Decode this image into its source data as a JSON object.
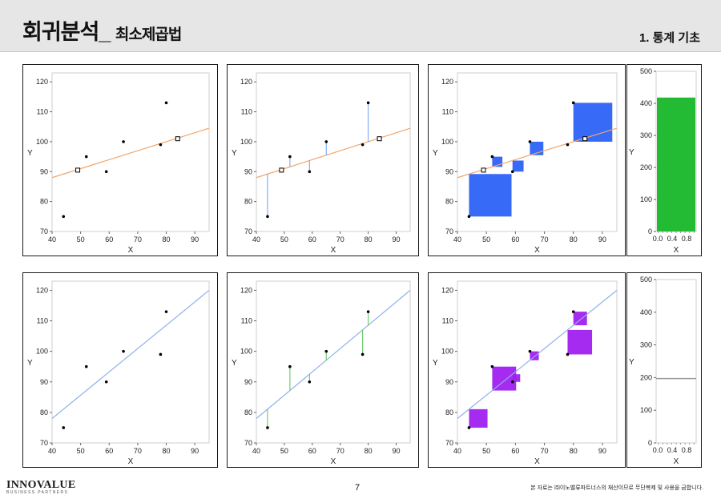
{
  "header": {
    "title": "회귀분석_",
    "subtitle": "최소제곱법",
    "section": "1. 통계 기초"
  },
  "footer": {
    "logo_main": "INNOVALUE",
    "logo_tag": "BUSINESS PARTNERS",
    "page_number": "7",
    "copyright": "본 자료는 ㈜이노밸류파트너스의 재산이므로 무단복제 및 사용을 금합니다."
  },
  "colors": {
    "fitted_line_top": "#f2a66b",
    "residual_top": "#6f9cf0",
    "square_top": "#2c62f5",
    "bar_top": "#22bb33",
    "fitted_line_bottom": "#8eb0ec",
    "residual_bottom": "#54c254",
    "square_bottom": "#a020f0",
    "bar_bottom_line": "#999999"
  },
  "chart_data": [
    {
      "type": "scatter",
      "xlabel": "X",
      "ylabel": "Y",
      "xlim": [
        40,
        95
      ],
      "ylim": [
        70,
        123
      ],
      "xticks": [
        40,
        50,
        60,
        70,
        80,
        90
      ],
      "yticks": [
        70,
        80,
        90,
        100,
        110,
        120
      ],
      "points": [
        [
          44,
          75
        ],
        [
          52,
          95
        ],
        [
          59,
          90
        ],
        [
          65,
          100
        ],
        [
          78,
          99
        ],
        [
          80,
          113
        ]
      ],
      "line": [
        [
          40,
          88
        ],
        [
          95,
          104.5
        ]
      ],
      "fitted_markers": [
        [
          49,
          90.5
        ],
        [
          84,
          101
        ]
      ],
      "show_residuals": false,
      "show_squares": false
    },
    {
      "type": "scatter",
      "xlabel": "X",
      "ylabel": "Y",
      "xlim": [
        40,
        95
      ],
      "ylim": [
        70,
        123
      ],
      "xticks": [
        40,
        50,
        60,
        70,
        80,
        90
      ],
      "yticks": [
        70,
        80,
        90,
        100,
        110,
        120
      ],
      "points": [
        [
          44,
          75
        ],
        [
          52,
          95
        ],
        [
          59,
          90
        ],
        [
          65,
          100
        ],
        [
          78,
          99
        ],
        [
          80,
          113
        ]
      ],
      "line": [
        [
          40,
          88
        ],
        [
          95,
          104.5
        ]
      ],
      "fitted_markers": [
        [
          49,
          90.5
        ],
        [
          84,
          101
        ]
      ],
      "show_residuals": true,
      "show_squares": false
    },
    {
      "type": "scatter",
      "xlabel": "X",
      "ylabel": "Y",
      "xlim": [
        40,
        95
      ],
      "ylim": [
        70,
        123
      ],
      "xticks": [
        40,
        50,
        60,
        70,
        80,
        90
      ],
      "yticks": [
        70,
        80,
        90,
        100,
        110,
        120
      ],
      "points": [
        [
          44,
          75
        ],
        [
          52,
          95
        ],
        [
          59,
          90
        ],
        [
          65,
          100
        ],
        [
          78,
          99
        ],
        [
          80,
          113
        ]
      ],
      "line": [
        [
          40,
          88
        ],
        [
          95,
          104.5
        ]
      ],
      "fitted_markers": [
        [
          49,
          90.5
        ],
        [
          84,
          101
        ]
      ],
      "show_residuals": false,
      "show_squares": true
    },
    {
      "type": "bar",
      "xlabel": "X",
      "ylabel": "Y",
      "xlim": [
        0,
        1
      ],
      "ylim": [
        0,
        500
      ],
      "xticks": [
        "0.0",
        "0.4",
        "0.8"
      ],
      "yticks": [
        0,
        100,
        200,
        300,
        400,
        500
      ],
      "bar_value": 418
    },
    {
      "type": "scatter",
      "xlabel": "X",
      "ylabel": "Y",
      "xlim": [
        40,
        95
      ],
      "ylim": [
        70,
        123
      ],
      "xticks": [
        40,
        50,
        60,
        70,
        80,
        90
      ],
      "yticks": [
        70,
        80,
        90,
        100,
        110,
        120
      ],
      "points": [
        [
          44,
          75
        ],
        [
          52,
          95
        ],
        [
          59,
          90
        ],
        [
          65,
          100
        ],
        [
          78,
          99
        ],
        [
          80,
          113
        ]
      ],
      "line": [
        [
          40,
          78
        ],
        [
          95,
          120
        ]
      ],
      "fitted_markers": [],
      "show_residuals": false,
      "show_squares": false
    },
    {
      "type": "scatter",
      "xlabel": "X",
      "ylabel": "Y",
      "xlim": [
        40,
        95
      ],
      "ylim": [
        70,
        123
      ],
      "xticks": [
        40,
        50,
        60,
        70,
        80,
        90
      ],
      "yticks": [
        70,
        80,
        90,
        100,
        110,
        120
      ],
      "points": [
        [
          44,
          75
        ],
        [
          52,
          95
        ],
        [
          59,
          90
        ],
        [
          65,
          100
        ],
        [
          78,
          99
        ],
        [
          80,
          113
        ]
      ],
      "line": [
        [
          40,
          78
        ],
        [
          95,
          120
        ]
      ],
      "fitted_markers": [],
      "show_residuals": true,
      "show_squares": false
    },
    {
      "type": "scatter",
      "xlabel": "X",
      "ylabel": "Y",
      "xlim": [
        40,
        95
      ],
      "ylim": [
        70,
        123
      ],
      "xticks": [
        40,
        50,
        60,
        70,
        80,
        90
      ],
      "yticks": [
        70,
        80,
        90,
        100,
        110,
        120
      ],
      "points": [
        [
          44,
          75
        ],
        [
          52,
          95
        ],
        [
          59,
          90
        ],
        [
          65,
          100
        ],
        [
          78,
          99
        ],
        [
          80,
          113
        ]
      ],
      "line": [
        [
          40,
          78
        ],
        [
          95,
          120
        ]
      ],
      "fitted_markers": [],
      "show_residuals": false,
      "show_squares": true
    },
    {
      "type": "bar",
      "xlabel": "X",
      "ylabel": "Y",
      "xlim": [
        0,
        1
      ],
      "ylim": [
        0,
        500
      ],
      "xticks": [
        "0.0",
        "0.4",
        "0.8"
      ],
      "yticks": [
        0,
        100,
        200,
        300,
        400,
        500
      ],
      "bar_value": 197
    }
  ]
}
